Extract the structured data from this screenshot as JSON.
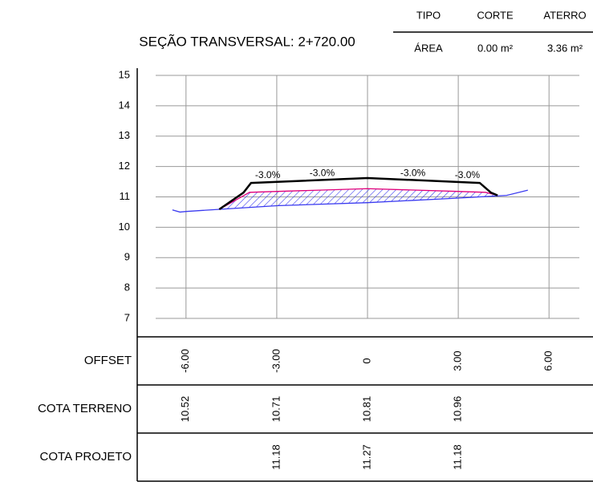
{
  "summary": {
    "headers": [
      "TIPO",
      "CORTE",
      "ATERRO"
    ],
    "row_label": "ÁREA",
    "row_values": [
      "0.00 m²",
      "3.36 m²"
    ]
  },
  "chart_data": {
    "type": "line",
    "title": "SEÇÃO TRANSVERSAL: 2+720.00",
    "xlim": [
      -7.0,
      7.0
    ],
    "ylim": [
      7,
      15
    ],
    "yticks": [
      7,
      8,
      9,
      10,
      11,
      12,
      13,
      14,
      15
    ],
    "xticks": [
      {
        "value": -6,
        "label": "-6.00"
      },
      {
        "value": -3,
        "label": "-3.00"
      },
      0,
      {
        "value": 3,
        "label": "3.00"
      },
      {
        "value": 6,
        "label": "6.00"
      }
    ],
    "grid": true,
    "series": [
      {
        "color": "#3a3af0",
        "x": [
          -6.45,
          -6.2,
          -6,
          -3,
          0,
          3,
          4.6,
          5.3
        ],
        "values": [
          10.57,
          10.5,
          10.52,
          10.71,
          10.81,
          10.96,
          11.05,
          11.22
        ]
      },
      {
        "color": "#e0007a",
        "x": [
          -4.9,
          -3.9,
          -3,
          0,
          3,
          3.9,
          4.3
        ],
        "values": [
          10.59,
          11.15,
          11.18,
          11.27,
          11.18,
          11.15,
          11.05
        ]
      },
      {
        "color": "#000000",
        "x": [
          -4.9,
          -4.1,
          -3.85,
          0,
          3.71,
          4.08,
          4.3
        ],
        "values": [
          10.59,
          11.14,
          11.46,
          11.62,
          11.46,
          11.14,
          11.05
        ]
      }
    ],
    "annotations": [
      {
        "text": "-3.0%",
        "x": -3.3,
        "y": 11.7
      },
      {
        "text": "-3.0%",
        "x": -1.5,
        "y": 11.77
      },
      {
        "text": "-3.0%",
        "x": 1.5,
        "y": 11.77
      },
      {
        "text": "-3.0%",
        "x": 3.3,
        "y": 11.7
      }
    ]
  },
  "table": {
    "rows": [
      {
        "label": "COTA TERRENO",
        "values": [
          "10.52",
          "10.71",
          "10.81",
          "10.96",
          null
        ]
      },
      {
        "label": "COTA PROJETO",
        "values": [
          null,
          "11.18",
          "11.27",
          "11.18",
          null
        ]
      }
    ],
    "offset_label": "OFFSET"
  }
}
